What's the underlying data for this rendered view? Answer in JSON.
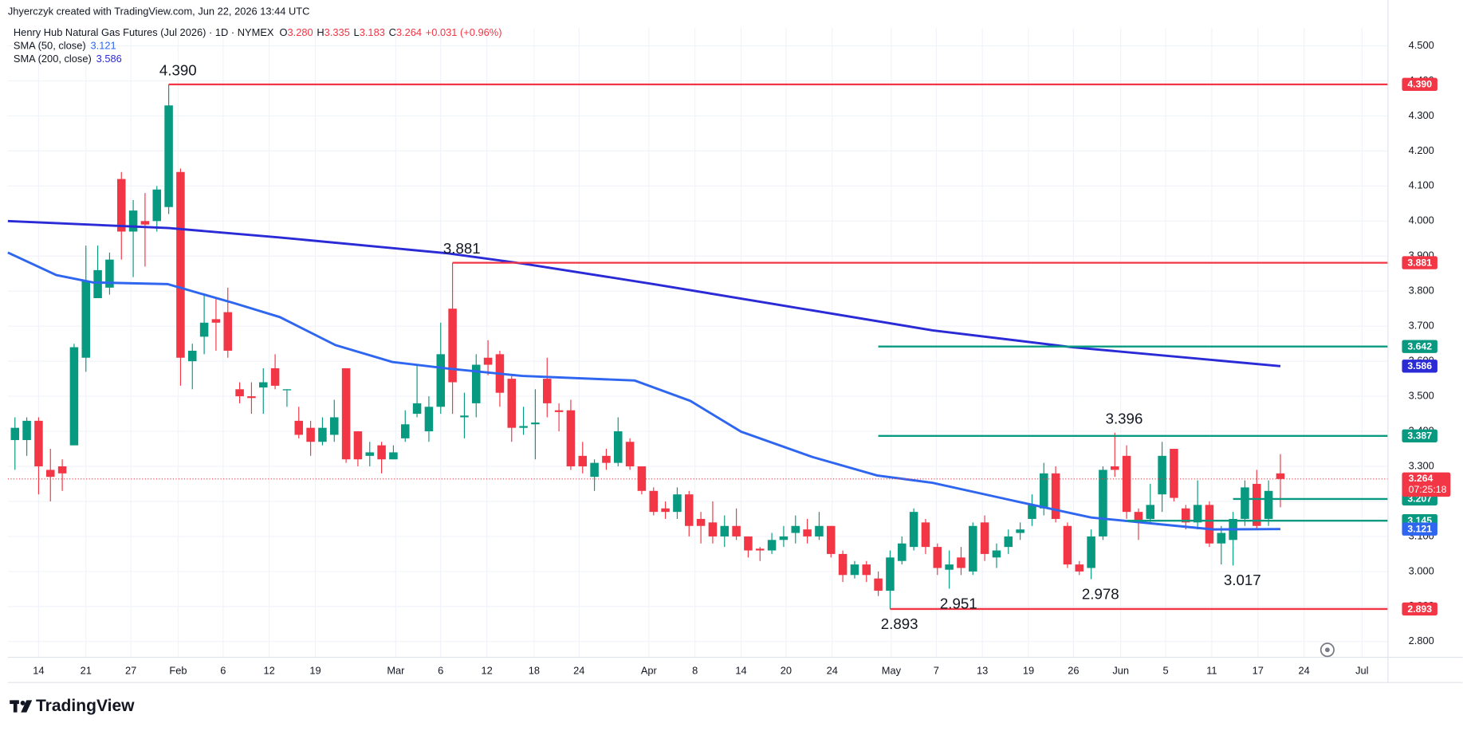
{
  "header": "Jhyerczyk created with TradingView.com, Jun 22, 2026 13:44 UTC",
  "footer": {
    "brand": "TradingView"
  },
  "chart_data": {
    "type": "candlestick",
    "title": "Henry Hub Natural Gas Futures (Jul 2026) · 1D · NYMEX",
    "ohlc_legend": [
      {
        "key": "O",
        "value": "3.280"
      },
      {
        "key": "H",
        "value": "3.335"
      },
      {
        "key": "L",
        "value": "3.183"
      },
      {
        "key": "C",
        "value": "3.264"
      }
    ],
    "change": "+0.031 (+0.96%)",
    "up_color": "#089981",
    "down_color": "#f23645",
    "open": [
      3.375,
      3.375,
      3.43,
      3.29,
      3.3,
      3.36,
      3.61,
      3.78,
      3.81,
      4.12,
      3.97,
      4.0,
      4.0,
      4.04,
      4.14,
      3.6,
      3.67,
      3.72,
      3.74,
      3.52,
      3.5,
      3.525,
      3.58,
      3.517,
      3.43,
      3.41,
      3.37,
      3.39,
      3.58,
      3.4,
      3.33,
      3.36,
      3.32,
      3.38,
      3.45,
      3.4,
      3.47,
      3.75,
      3.44,
      3.48,
      3.61,
      3.62,
      3.55,
      3.41,
      3.42,
      3.55,
      3.46,
      3.46,
      3.33,
      3.27,
      3.33,
      3.31,
      3.37,
      3.3,
      3.23,
      3.18,
      3.17,
      3.22,
      3.15,
      3.14,
      3.1,
      3.13,
      3.1,
      3.065,
      3.06,
      3.09,
      3.11,
      3.12,
      3.1,
      3.13,
      3.05,
      2.99,
      3.02,
      2.98,
      2.945,
      3.03,
      3.07,
      3.14,
      3.07,
      3.005,
      3.04,
      3.0,
      3.14,
      3.04,
      3.07,
      3.11,
      3.15,
      3.18,
      3.28,
      3.13,
      3.02,
      3.01,
      3.1,
      3.3,
      3.33,
      3.17,
      3.15,
      3.22,
      3.35,
      3.18,
      3.14,
      3.19,
      3.08,
      3.09,
      3.15,
      3.25,
      3.15,
      3.28
    ],
    "high": [
      3.44,
      3.44,
      3.44,
      3.35,
      3.32,
      3.65,
      3.93,
      3.93,
      3.91,
      4.14,
      4.06,
      4.08,
      4.1,
      4.39,
      4.15,
      3.65,
      3.79,
      3.78,
      3.81,
      3.54,
      3.54,
      3.58,
      3.62,
      3.52,
      3.47,
      3.43,
      3.44,
      3.49,
      3.58,
      3.4,
      3.37,
      3.37,
      3.36,
      3.46,
      3.59,
      3.5,
      3.71,
      3.881,
      3.51,
      3.62,
      3.66,
      3.63,
      3.56,
      3.47,
      3.52,
      3.61,
      3.48,
      3.49,
      3.37,
      3.32,
      3.35,
      3.44,
      3.38,
      3.3,
      3.24,
      3.2,
      3.24,
      3.23,
      3.17,
      3.2,
      3.16,
      3.18,
      3.1,
      3.07,
      3.11,
      3.13,
      3.16,
      3.15,
      3.17,
      3.13,
      3.06,
      3.03,
      3.03,
      3.0,
      3.06,
      3.1,
      3.18,
      3.15,
      3.08,
      3.06,
      3.07,
      3.14,
      3.16,
      3.08,
      3.12,
      3.14,
      3.22,
      3.31,
      3.3,
      3.14,
      3.03,
      3.12,
      3.3,
      3.396,
      3.36,
      3.18,
      3.25,
      3.37,
      3.35,
      3.19,
      3.26,
      3.2,
      3.13,
      3.17,
      3.26,
      3.29,
      3.26,
      3.335
    ],
    "low": [
      3.29,
      3.33,
      3.22,
      3.2,
      3.23,
      3.36,
      3.57,
      3.78,
      3.79,
      3.89,
      3.84,
      3.87,
      3.97,
      4.02,
      3.53,
      3.52,
      3.62,
      3.63,
      3.61,
      3.48,
      3.45,
      3.45,
      3.52,
      3.47,
      3.38,
      3.33,
      3.36,
      3.37,
      3.31,
      3.3,
      3.3,
      3.28,
      3.32,
      3.37,
      3.44,
      3.37,
      3.45,
      3.45,
      3.38,
      3.44,
      3.56,
      3.47,
      3.37,
      3.39,
      3.32,
      3.44,
      3.4,
      3.29,
      3.28,
      3.23,
      3.29,
      3.3,
      3.29,
      3.22,
      3.16,
      3.15,
      3.15,
      3.1,
      3.08,
      3.08,
      3.07,
      3.09,
      3.04,
      3.03,
      3.05,
      3.07,
      3.08,
      3.08,
      3.09,
      3.04,
      2.97,
      2.98,
      2.97,
      2.93,
      2.893,
      3.02,
      3.06,
      3.05,
      2.99,
      2.951,
      2.99,
      2.99,
      3.03,
      3.01,
      3.05,
      3.09,
      3.13,
      3.16,
      3.14,
      3.01,
      2.99,
      2.978,
      3.09,
      3.27,
      3.15,
      3.09,
      3.14,
      3.17,
      3.2,
      3.12,
      3.12,
      3.07,
      3.02,
      3.017,
      3.13,
      3.12,
      3.13,
      3.183
    ],
    "close": [
      3.41,
      3.43,
      3.3,
      3.27,
      3.28,
      3.64,
      3.83,
      3.86,
      3.89,
      3.97,
      4.03,
      3.99,
      4.09,
      4.33,
      3.61,
      3.63,
      3.71,
      3.71,
      3.63,
      3.5,
      3.495,
      3.54,
      3.53,
      3.52,
      3.39,
      3.37,
      3.41,
      3.44,
      3.32,
      3.32,
      3.34,
      3.32,
      3.34,
      3.42,
      3.48,
      3.47,
      3.62,
      3.54,
      3.445,
      3.59,
      3.59,
      3.51,
      3.41,
      3.415,
      3.425,
      3.48,
      3.455,
      3.3,
      3.3,
      3.31,
      3.31,
      3.4,
      3.3,
      3.23,
      3.17,
      3.17,
      3.22,
      3.13,
      3.13,
      3.1,
      3.13,
      3.1,
      3.06,
      3.06,
      3.09,
      3.1,
      3.13,
      3.1,
      3.13,
      3.05,
      2.99,
      3.02,
      2.99,
      2.945,
      3.04,
      3.08,
      3.17,
      3.07,
      3.01,
      3.02,
      3.01,
      3.13,
      3.05,
      3.06,
      3.1,
      3.12,
      3.19,
      3.28,
      3.15,
      3.02,
      3.0,
      3.1,
      3.29,
      3.29,
      3.17,
      3.14,
      3.19,
      3.33,
      3.21,
      3.14,
      3.19,
      3.08,
      3.11,
      3.15,
      3.24,
      3.13,
      3.23,
      3.264
    ],
    "sma": [
      {
        "name": "SMA (50, close)",
        "color": "#2f66f0",
        "value_label": "3.121",
        "x": [
          -0.6,
          3.5,
          6.6,
          12.9,
          18.5,
          22.4,
          27.1,
          31.9,
          36.6,
          42.9,
          52.4,
          57.1,
          61.4,
          67.4,
          72.9,
          77.6,
          85.5,
          91,
          97.3,
          101.3,
          107
        ],
        "values": [
          3.91,
          3.846,
          3.825,
          3.82,
          3.766,
          3.726,
          3.646,
          3.598,
          3.579,
          3.558,
          3.545,
          3.487,
          3.399,
          3.327,
          3.274,
          3.253,
          3.194,
          3.154,
          3.133,
          3.12,
          3.121
        ]
      },
      {
        "name": "SMA (200, close)",
        "color": "#2a2ad6",
        "value_label": "3.586",
        "x": [
          -0.6,
          13,
          22.4,
          36.6,
          42.9,
          54,
          65.8,
          77.6,
          89.4,
          107
        ],
        "values": [
          4.0,
          3.98,
          3.953,
          3.908,
          3.879,
          3.82,
          3.754,
          3.688,
          3.64,
          3.586
        ]
      }
    ],
    "levels": [
      {
        "value": 4.39,
        "label": "4.390",
        "color": "#f23645",
        "from": 13
      },
      {
        "value": 3.881,
        "label": "3.881",
        "color": "#f23645",
        "from": 37
      },
      {
        "value": 3.642,
        "label": "3.642",
        "color": "#089981",
        "from": 73
      },
      {
        "value": 3.387,
        "label": "3.387",
        "color": "#089981",
        "from": 73
      },
      {
        "value": 3.207,
        "label": "3.207",
        "color": "#089981",
        "from": 103
      },
      {
        "value": 3.145,
        "label": "3.145",
        "color": "#089981",
        "from": 94
      },
      {
        "value": 2.893,
        "label": "2.893",
        "color": "#f23645",
        "from": 74
      }
    ],
    "annotations": [
      {
        "text": "4.390",
        "x": 13,
        "y": 4.39
      },
      {
        "text": "3.881",
        "x": 37,
        "y": 3.881
      },
      {
        "text": "3.396",
        "x": 93,
        "y": 3.396
      },
      {
        "text": "2.893",
        "x": 74,
        "y": 2.893
      },
      {
        "text": "2.951",
        "x": 79,
        "y": 2.951
      },
      {
        "text": "2.978",
        "x": 91,
        "y": 2.978
      },
      {
        "text": "3.017",
        "x": 103,
        "y": 3.017
      }
    ],
    "last_price": {
      "value": 3.264,
      "label": "3.264",
      "countdown": "07:25:18"
    },
    "xlim": [
      -0.6,
      116.1
    ],
    "xticks": [
      {
        "value": 2,
        "label": "14"
      },
      {
        "value": 6,
        "label": "21"
      },
      {
        "value": 9.8,
        "label": "27"
      },
      {
        "value": 13.8,
        "label": "Feb"
      },
      {
        "value": 17.6,
        "label": "6"
      },
      {
        "value": 21.5,
        "label": "12"
      },
      {
        "value": 25.4,
        "label": "19"
      },
      {
        "value": 32.2,
        "label": "Mar"
      },
      {
        "value": 36,
        "label": "6"
      },
      {
        "value": 39.9,
        "label": "12"
      },
      {
        "value": 43.9,
        "label": "18"
      },
      {
        "value": 47.7,
        "label": "24"
      },
      {
        "value": 53.6,
        "label": "Apr"
      },
      {
        "value": 57.5,
        "label": "8"
      },
      {
        "value": 61.4,
        "label": "14"
      },
      {
        "value": 65.2,
        "label": "20"
      },
      {
        "value": 69.1,
        "label": "24"
      },
      {
        "value": 74.1,
        "label": "May"
      },
      {
        "value": 77.9,
        "label": "7"
      },
      {
        "value": 81.8,
        "label": "13"
      },
      {
        "value": 85.7,
        "label": "19"
      },
      {
        "value": 89.5,
        "label": "26"
      },
      {
        "value": 93.5,
        "label": "Jun"
      },
      {
        "value": 97.3,
        "label": "5"
      },
      {
        "value": 101.2,
        "label": "11"
      },
      {
        "value": 105.1,
        "label": "17"
      },
      {
        "value": 109,
        "label": "24"
      },
      {
        "value": 113.9,
        "label": "Jul"
      }
    ],
    "ylim": [
      2.755,
      4.551
    ],
    "yticks": [
      {
        "value": 2.8,
        "label": "2.800"
      },
      {
        "value": 2.9,
        "label": "2.900"
      },
      {
        "value": 3.0,
        "label": "3.000"
      },
      {
        "value": 3.1,
        "label": "3.100"
      },
      {
        "value": 3.2,
        "label": "3.200"
      },
      {
        "value": 3.3,
        "label": "3.300"
      },
      {
        "value": 3.4,
        "label": "3.400"
      },
      {
        "value": 3.5,
        "label": "3.500"
      },
      {
        "value": 3.6,
        "label": "3.600"
      },
      {
        "value": 3.7,
        "label": "3.700"
      },
      {
        "value": 3.8,
        "label": "3.800"
      },
      {
        "value": 3.9,
        "label": "3.900"
      },
      {
        "value": 4.0,
        "label": "4.000"
      },
      {
        "value": 4.1,
        "label": "4.100"
      },
      {
        "value": 4.2,
        "label": "4.200"
      },
      {
        "value": 4.3,
        "label": "4.300"
      },
      {
        "value": 4.4,
        "label": "4.400"
      },
      {
        "value": 4.5,
        "label": "4.500"
      }
    ],
    "grid": true
  }
}
